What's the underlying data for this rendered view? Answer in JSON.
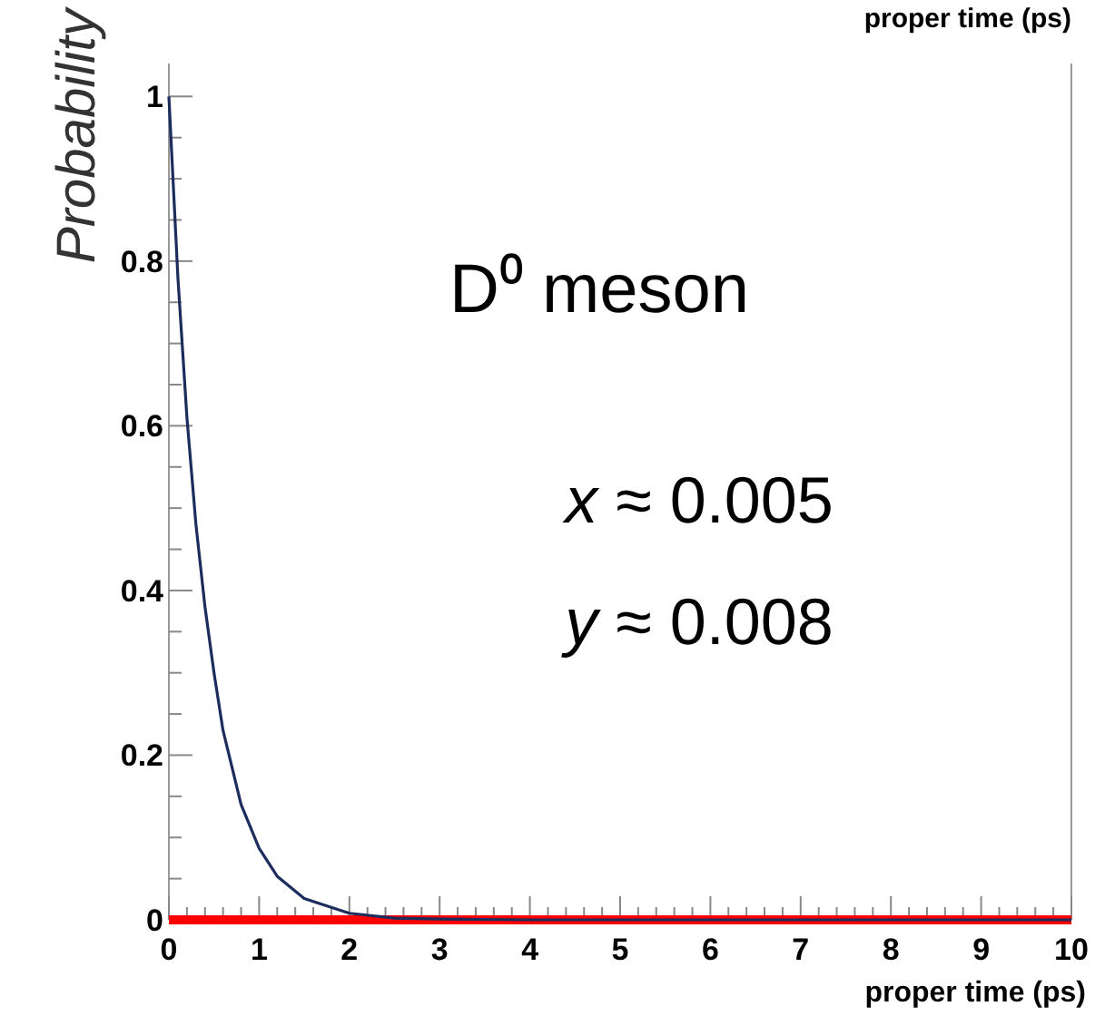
{
  "chart_data": {
    "type": "line",
    "xlabel": "proper time (ps)",
    "ylabel": "Probability",
    "annotations": [
      "D⁰ meson",
      "x ≈ 0.005",
      "y ≈ 0.008",
      "proper time (ps)"
    ],
    "x": [
      0,
      0.1,
      0.2,
      0.3,
      0.4,
      0.5,
      0.6,
      0.8,
      1,
      1.2,
      1.5,
      2,
      2.5,
      3,
      4,
      5,
      6,
      7,
      8,
      9,
      10
    ],
    "series": [
      {
        "color": "#1c2c5c",
        "values": [
          1,
          0.78,
          0.61,
          0.48,
          0.38,
          0.3,
          0.23,
          0.14,
          0.087,
          0.053,
          0.026,
          0.008,
          0.002,
          0.001,
          0,
          0,
          0,
          0,
          0,
          0,
          0
        ]
      },
      {
        "color": "#ff0000",
        "values": [
          0,
          0,
          0,
          0,
          0,
          0,
          0,
          0,
          0,
          0,
          0,
          0,
          0,
          0,
          0,
          0,
          0,
          0,
          0,
          0,
          0
        ]
      }
    ],
    "xlim": [
      0,
      10
    ],
    "ylim": [
      0,
      1.04
    ],
    "xticks": [
      0,
      {
        "value": 0.2,
        "label": null
      },
      {
        "value": 0.4,
        "label": null
      },
      {
        "value": 0.6,
        "label": null
      },
      {
        "value": 0.8,
        "label": null
      },
      1,
      {
        "value": 1.2,
        "label": null
      },
      {
        "value": 1.4,
        "label": null
      },
      {
        "value": 1.6,
        "label": null
      },
      {
        "value": 1.8,
        "label": null
      },
      2,
      {
        "value": 2.2,
        "label": null
      },
      {
        "value": 2.4,
        "label": null
      },
      {
        "value": 2.6,
        "label": null
      },
      {
        "value": 2.8,
        "label": null
      },
      3,
      {
        "value": 3.2,
        "label": null
      },
      {
        "value": 3.4,
        "label": null
      },
      {
        "value": 3.6,
        "label": null
      },
      {
        "value": 3.8,
        "label": null
      },
      4,
      {
        "value": 4.2,
        "label": null
      },
      {
        "value": 4.4,
        "label": null
      },
      {
        "value": 4.6,
        "label": null
      },
      {
        "value": 4.8,
        "label": null
      },
      5,
      {
        "value": 5.2,
        "label": null
      },
      {
        "value": 5.4,
        "label": null
      },
      {
        "value": 5.6,
        "label": null
      },
      {
        "value": 5.8,
        "label": null
      },
      6,
      {
        "value": 6.2,
        "label": null
      },
      {
        "value": 6.4,
        "label": null
      },
      {
        "value": 6.6,
        "label": null
      },
      {
        "value": 6.8,
        "label": null
      },
      7,
      {
        "value": 7.2,
        "label": null
      },
      {
        "value": 7.4,
        "label": null
      },
      {
        "value": 7.6,
        "label": null
      },
      {
        "value": 7.8,
        "label": null
      },
      8,
      {
        "value": 8.2,
        "label": null
      },
      {
        "value": 8.4,
        "label": null
      },
      {
        "value": 8.6,
        "label": null
      },
      {
        "value": 8.8,
        "label": null
      },
      9,
      {
        "value": 9.2,
        "label": null
      },
      {
        "value": 9.4,
        "label": null
      },
      {
        "value": 9.6,
        "label": null
      },
      {
        "value": 9.8,
        "label": null
      },
      10
    ],
    "yticks": [
      0,
      {
        "value": 0.05,
        "label": null
      },
      {
        "value": 0.1,
        "label": null
      },
      {
        "value": 0.15,
        "label": null
      },
      0.2,
      {
        "value": 0.25,
        "label": null
      },
      {
        "value": 0.3,
        "label": null
      },
      {
        "value": 0.35,
        "label": null
      },
      0.4,
      {
        "value": 0.45,
        "label": null
      },
      {
        "value": 0.5,
        "label": null
      },
      {
        "value": 0.55,
        "label": null
      },
      0.6,
      {
        "value": 0.65,
        "label": null
      },
      {
        "value": 0.7,
        "label": null
      },
      {
        "value": 0.75,
        "label": null
      },
      0.8,
      {
        "value": 0.85,
        "label": null
      },
      {
        "value": 0.9,
        "label": null
      },
      {
        "value": 0.95,
        "label": null
      },
      1
    ],
    "grid": false,
    "marker": "none",
    "line_style": "solid"
  }
}
